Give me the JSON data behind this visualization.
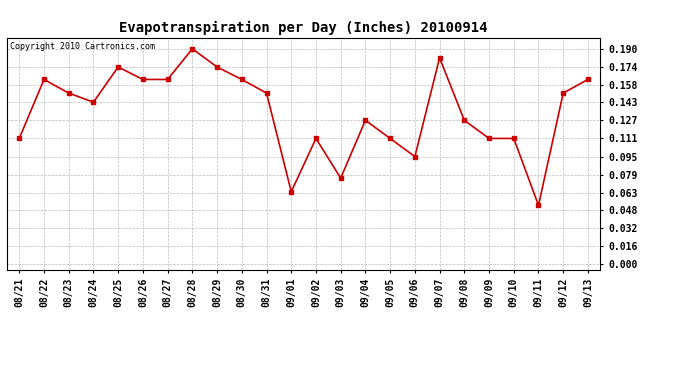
{
  "title": "Evapotranspiration per Day (Inches) 20100914",
  "copyright_text": "Copyright 2010 Cartronics.com",
  "x_labels": [
    "08/21",
    "08/22",
    "08/23",
    "08/24",
    "08/25",
    "08/26",
    "08/27",
    "08/28",
    "08/29",
    "08/30",
    "08/31",
    "09/01",
    "09/02",
    "09/03",
    "09/04",
    "09/05",
    "09/06",
    "09/07",
    "09/08",
    "09/09",
    "09/10",
    "09/11",
    "09/12",
    "09/13"
  ],
  "y_values": [
    0.111,
    0.163,
    0.151,
    0.143,
    0.174,
    0.163,
    0.163,
    0.19,
    0.174,
    0.163,
    0.151,
    0.064,
    0.111,
    0.076,
    0.127,
    0.111,
    0.095,
    0.182,
    0.127,
    0.111,
    0.111,
    0.052,
    0.151,
    0.163
  ],
  "line_color": "#cc0000",
  "marker": "s",
  "marker_size": 2.5,
  "line_width": 1.2,
  "y_ticks": [
    0.0,
    0.016,
    0.032,
    0.048,
    0.063,
    0.079,
    0.095,
    0.111,
    0.127,
    0.143,
    0.158,
    0.174,
    0.19
  ],
  "ylim": [
    -0.005,
    0.2
  ],
  "grid_color": "#bbbbbb",
  "bg_color": "#ffffff",
  "title_fontsize": 10,
  "copyright_fontsize": 6,
  "tick_fontsize": 7,
  "ytick_fontsize": 7
}
